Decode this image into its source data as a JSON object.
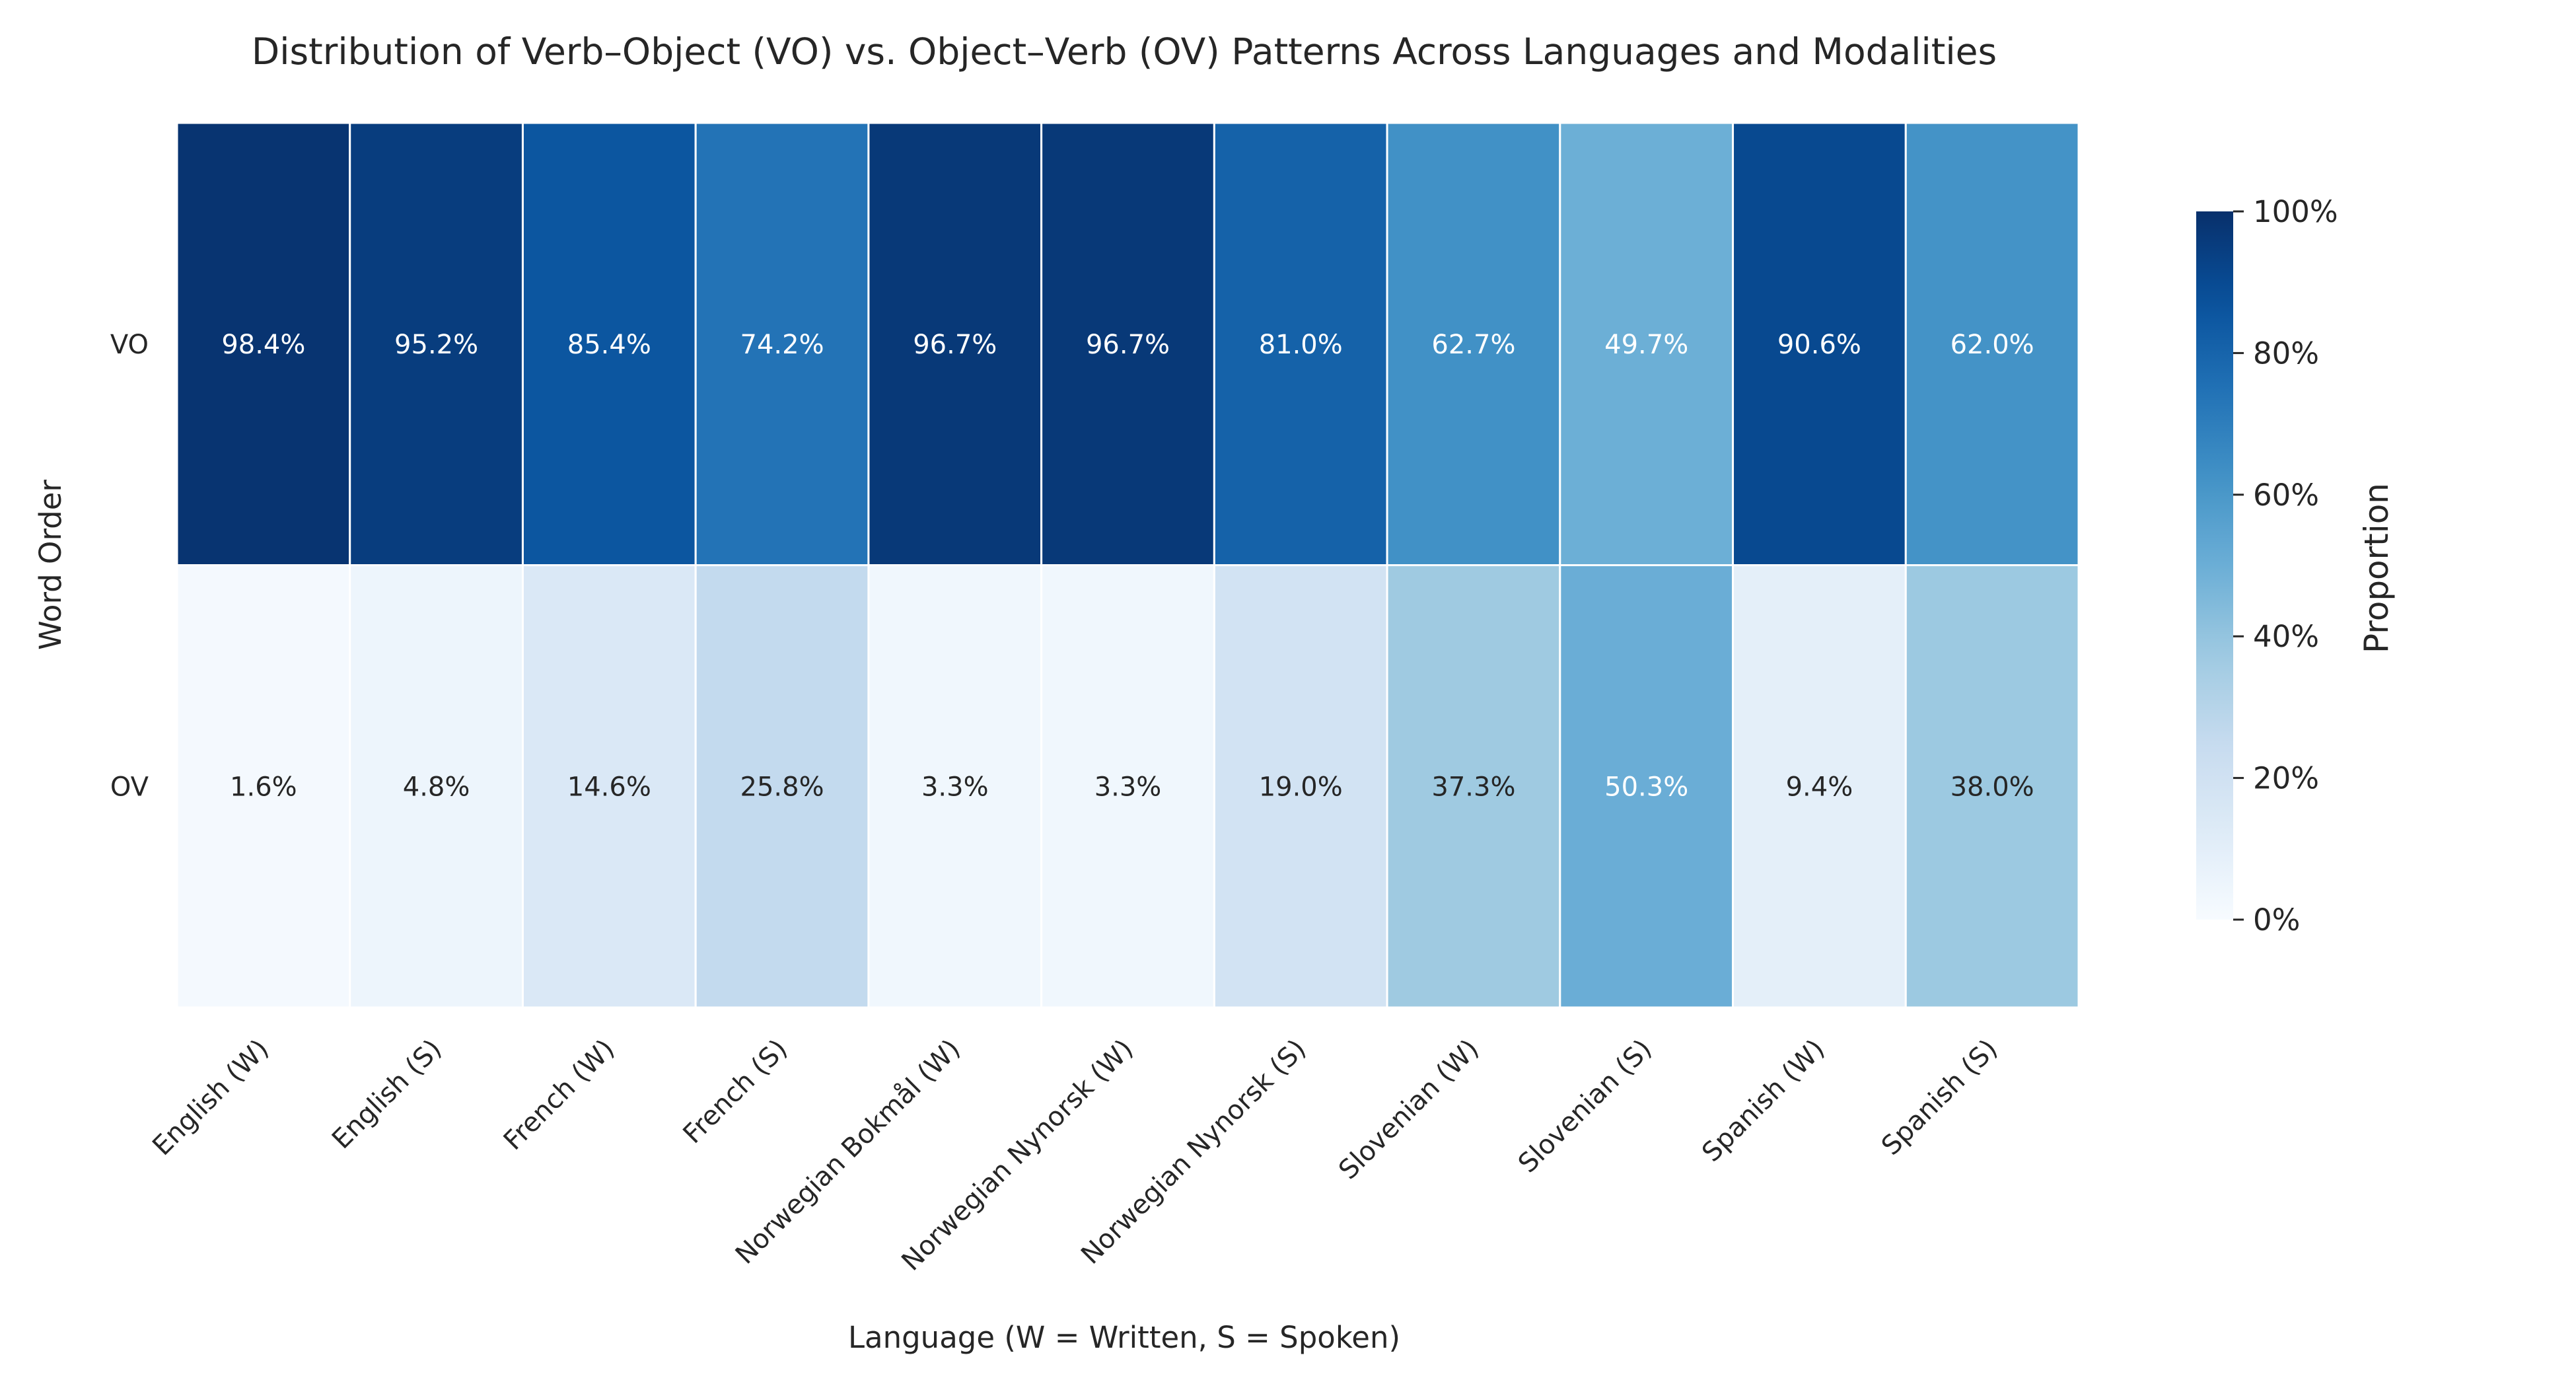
{
  "chart_data": {
    "type": "heatmap",
    "title": "Distribution of Verb–Object (VO) vs. Object–Verb (OV) Patterns Across Languages and Modalities",
    "xlabel": "Language (W = Written, S = Spoken)",
    "ylabel": "Word Order",
    "colorbar_label": "Proportion",
    "colormap": "Blues",
    "colorbar_ticks": [
      "0%",
      "20%",
      "40%",
      "60%",
      "80%",
      "100%"
    ],
    "colorbar_range": [
      0,
      100
    ],
    "categories": [
      "English (W)",
      "English (S)",
      "French (W)",
      "French (S)",
      "Norwegian Bokmål (W)",
      "Norwegian Nynorsk (W)",
      "Norwegian Nynorsk (S)",
      "Slovenian (W)",
      "Slovenian (S)",
      "Spanish (W)",
      "Spanish (S)"
    ],
    "rows": [
      "VO",
      "OV"
    ],
    "values": [
      [
        98.4,
        95.2,
        85.4,
        74.2,
        96.7,
        96.7,
        81.0,
        62.7,
        49.7,
        90.6,
        62.0
      ],
      [
        1.6,
        4.8,
        14.6,
        25.8,
        3.3,
        3.3,
        19.0,
        37.3,
        50.3,
        9.4,
        38.0
      ]
    ],
    "labels": [
      [
        "98.4%",
        "95.2%",
        "85.4%",
        "74.2%",
        "96.7%",
        "96.7%",
        "81.0%",
        "62.7%",
        "49.7%",
        "90.6%",
        "62.0%"
      ],
      [
        "1.6%",
        "4.8%",
        "14.6%",
        "25.8%",
        "3.3%",
        "3.3%",
        "19.0%",
        "37.3%",
        "50.3%",
        "9.4%",
        "38.0%"
      ]
    ]
  }
}
